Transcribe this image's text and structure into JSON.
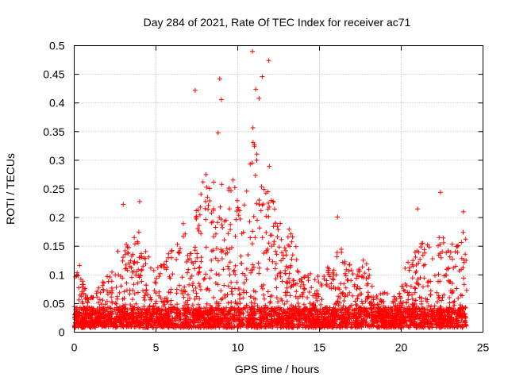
{
  "chart_data": {
    "type": "scatter",
    "title": "Day 284 of 2021, Rate Of TEC Index for receiver ac71",
    "xlabel": "GPS time / hours",
    "ylabel": "ROTI / TECUs",
    "xlim": [
      0,
      25
    ],
    "ylim": [
      0,
      0.5
    ],
    "x_ticks": [
      0,
      5,
      10,
      15,
      20,
      25
    ],
    "x_tick_labels": [
      "0",
      "5",
      "10",
      "15",
      "20",
      "25"
    ],
    "y_ticks": [
      0,
      0.05,
      0.1,
      0.15,
      0.2,
      0.25,
      0.3,
      0.35,
      0.4,
      0.45,
      0.5
    ],
    "y_tick_labels": [
      "0",
      "0.05",
      "0.1",
      "0.15",
      "0.2",
      "0.25",
      "0.3",
      "0.35",
      "0.4",
      "0.45",
      "0.5"
    ],
    "grid": true,
    "marker": "+",
    "color": "#ff0000",
    "x_range_covered": [
      0,
      24
    ],
    "outliers": [
      {
        "x": 7.4,
        "y": 0.422
      },
      {
        "x": 8.9,
        "y": 0.442
      },
      {
        "x": 9.0,
        "y": 0.406
      },
      {
        "x": 8.8,
        "y": 0.348
      },
      {
        "x": 10.9,
        "y": 0.49
      },
      {
        "x": 11.5,
        "y": 0.446
      },
      {
        "x": 11.9,
        "y": 0.474
      },
      {
        "x": 11.3,
        "y": 0.408
      },
      {
        "x": 11.1,
        "y": 0.424
      },
      {
        "x": 22.4,
        "y": 0.244
      },
      {
        "x": 3.0,
        "y": 0.223
      },
      {
        "x": 4.0,
        "y": 0.228
      },
      {
        "x": 16.1,
        "y": 0.201
      },
      {
        "x": 21.0,
        "y": 0.215
      },
      {
        "x": 23.8,
        "y": 0.21
      }
    ],
    "envelope": [
      [
        0.0,
        0.09
      ],
      [
        0.3,
        0.13
      ],
      [
        0.6,
        0.08
      ],
      [
        1.0,
        0.06
      ],
      [
        1.5,
        0.08
      ],
      [
        2.0,
        0.1
      ],
      [
        2.5,
        0.11
      ],
      [
        2.8,
        0.17
      ],
      [
        3.1,
        0.17
      ],
      [
        3.5,
        0.14
      ],
      [
        3.9,
        0.2
      ],
      [
        4.3,
        0.15
      ],
      [
        4.8,
        0.12
      ],
      [
        5.3,
        0.12
      ],
      [
        5.7,
        0.14
      ],
      [
        6.2,
        0.15
      ],
      [
        6.6,
        0.22
      ],
      [
        7.0,
        0.14
      ],
      [
        7.5,
        0.22
      ],
      [
        7.9,
        0.27
      ],
      [
        8.3,
        0.3
      ],
      [
        8.7,
        0.26
      ],
      [
        9.1,
        0.28
      ],
      [
        9.5,
        0.25
      ],
      [
        9.9,
        0.28
      ],
      [
        10.3,
        0.22
      ],
      [
        10.7,
        0.33
      ],
      [
        11.0,
        0.38
      ],
      [
        11.3,
        0.35
      ],
      [
        11.7,
        0.28
      ],
      [
        12.1,
        0.3
      ],
      [
        12.5,
        0.2
      ],
      [
        12.9,
        0.19
      ],
      [
        13.4,
        0.18
      ],
      [
        13.9,
        0.12
      ],
      [
        14.4,
        0.11
      ],
      [
        14.9,
        0.1
      ],
      [
        15.4,
        0.11
      ],
      [
        15.9,
        0.13
      ],
      [
        16.3,
        0.15
      ],
      [
        16.8,
        0.12
      ],
      [
        17.3,
        0.1
      ],
      [
        17.8,
        0.15
      ],
      [
        18.3,
        0.08
      ],
      [
        18.8,
        0.07
      ],
      [
        19.3,
        0.07
      ],
      [
        19.8,
        0.06
      ],
      [
        20.3,
        0.12
      ],
      [
        20.8,
        0.14
      ],
      [
        21.2,
        0.16
      ],
      [
        21.6,
        0.16
      ],
      [
        22.0,
        0.14
      ],
      [
        22.4,
        0.18
      ],
      [
        22.8,
        0.16
      ],
      [
        23.2,
        0.16
      ],
      [
        23.6,
        0.18
      ],
      [
        24.0,
        0.18
      ]
    ],
    "baseline_max": 0.035,
    "approx_point_count": 3800
  }
}
